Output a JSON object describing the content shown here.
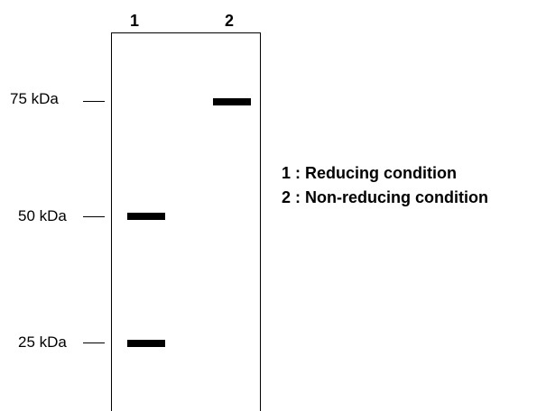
{
  "lanes": [
    {
      "label": "1"
    },
    {
      "label": "2"
    }
  ],
  "markers": [
    {
      "label": "75 kDa"
    },
    {
      "label": "50 kDa"
    },
    {
      "label": "25 kDa"
    }
  ],
  "bands": [
    {
      "lane": "1",
      "marker": "50 kDa"
    },
    {
      "lane": "1",
      "marker": "25 kDa"
    },
    {
      "lane": "2",
      "marker": "75 kDa"
    }
  ],
  "legend": [
    {
      "text": "1 : Reducing condition"
    },
    {
      "text": "2 : Non-reducing condition"
    }
  ]
}
